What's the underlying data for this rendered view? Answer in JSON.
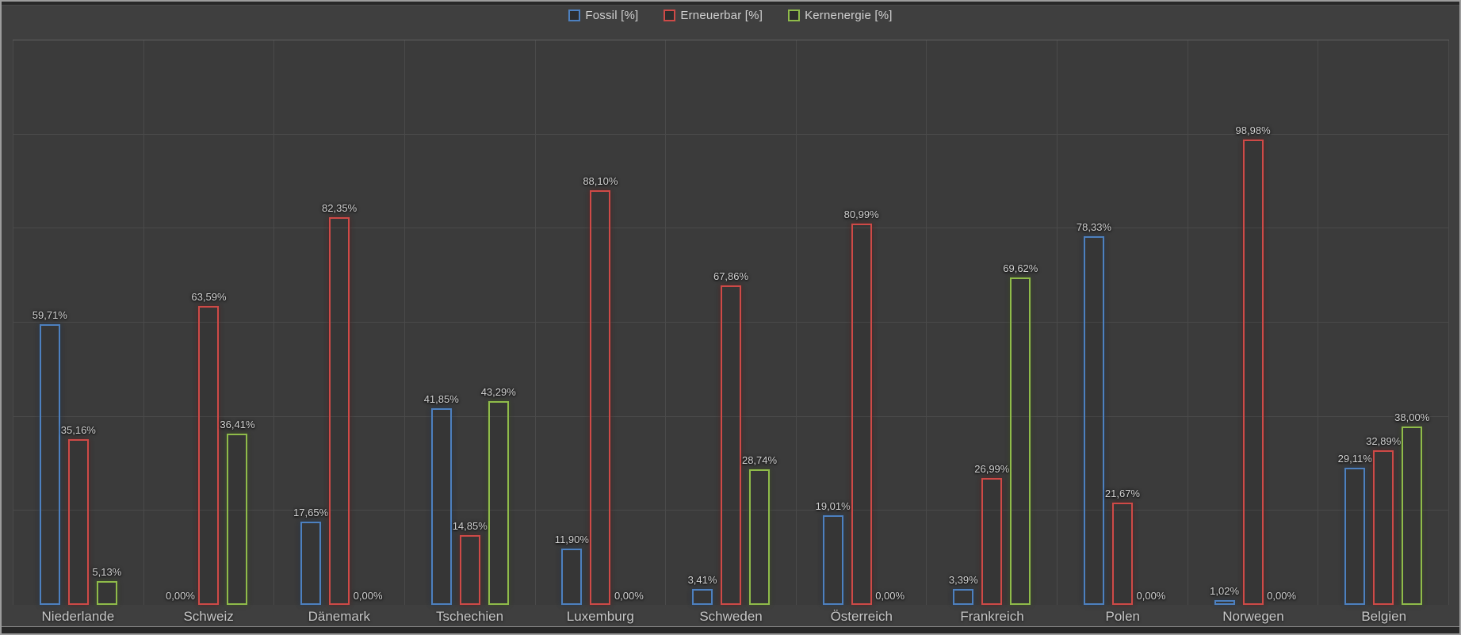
{
  "legend": {
    "items": [
      {
        "label": "Fossil [%]",
        "color": "#4d80bf"
      },
      {
        "label": "Erneuerbar [%]",
        "color": "#ce4a47"
      },
      {
        "label": "Kernenergie [%]",
        "color": "#8fbb4a"
      }
    ]
  },
  "chart_data": {
    "type": "bar",
    "title": "",
    "xlabel": "",
    "ylabel": "",
    "ylim": [
      0,
      120
    ],
    "gridline_step_pct": 20,
    "grid": true,
    "legend_position": "top-center",
    "value_label_decimal": "comma",
    "categories": [
      "Niederlande",
      "Schweiz",
      "Dänemark",
      "Tschechien",
      "Luxemburg",
      "Schweden",
      "Österreich",
      "Frankreich",
      "Polen",
      "Norwegen",
      "Belgien"
    ],
    "series": [
      {
        "name": "Fossil [%]",
        "color": "#4d80bf",
        "values": [
          59.71,
          0.0,
          17.65,
          41.85,
          11.9,
          3.41,
          19.01,
          3.39,
          78.33,
          1.02,
          29.11
        ],
        "value_labels": [
          "59,71%",
          "0,00%",
          "17,65%",
          "41,85%",
          "11,90%",
          "3,41%",
          "19,01%",
          "3,39%",
          "78,33%",
          "1,02%",
          "29,11%"
        ]
      },
      {
        "name": "Erneuerbar [%]",
        "color": "#ce4a47",
        "values": [
          35.16,
          63.59,
          82.35,
          14.85,
          88.1,
          67.86,
          80.99,
          26.99,
          21.67,
          98.98,
          32.89
        ],
        "value_labels": [
          "35,16%",
          "63,59%",
          "82,35%",
          "14,85%",
          "88,10%",
          "67,86%",
          "80,99%",
          "26,99%",
          "21,67%",
          "98,98%",
          "32,89%"
        ]
      },
      {
        "name": "Kernenergie [%]",
        "color": "#8fbb4a",
        "values": [
          5.13,
          36.41,
          0.0,
          43.29,
          0.0,
          28.74,
          0.0,
          69.62,
          0.0,
          0.0,
          38.0
        ],
        "value_labels": [
          "5,13%",
          "36,41%",
          "0,00%",
          "43,29%",
          "0,00%",
          "28,74%",
          "0,00%",
          "69,62%",
          "0,00%",
          "0,00%",
          "38,00%"
        ]
      }
    ]
  },
  "colors": {
    "window_background": "#3f3f3f",
    "plot_background": "#3b3b3b",
    "gridline": "#4a4a4a",
    "window_border": "#9c9c9c",
    "value_text": "#d2d2d2",
    "category_text": "#c6c6c6",
    "legend_text": "#cfcfcf"
  }
}
